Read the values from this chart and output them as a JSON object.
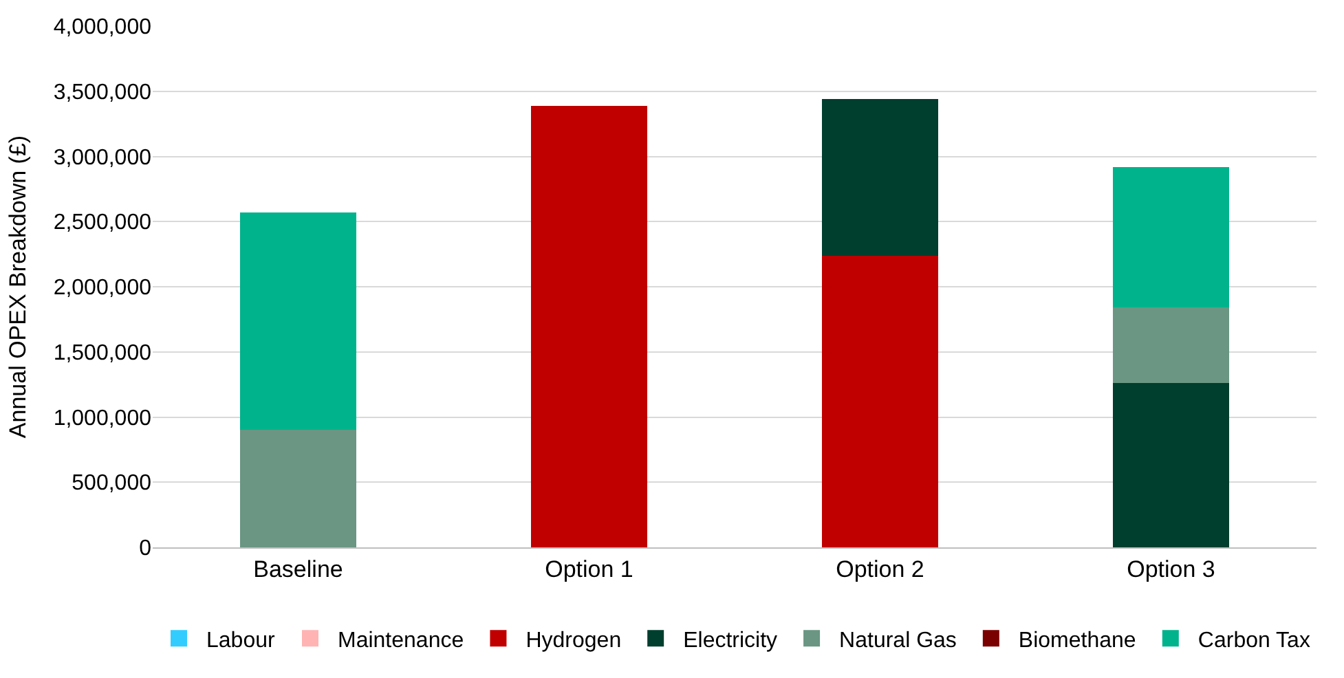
{
  "chart_data": {
    "type": "bar",
    "stacked": true,
    "ylabel": "Annual OPEX Breakdown (£)",
    "categories": [
      "Baseline",
      "Option 1",
      "Option 2",
      "Option 3"
    ],
    "series": [
      {
        "name": "Labour",
        "color": "#33ccff",
        "values": [
          0,
          0,
          0,
          0
        ]
      },
      {
        "name": "Maintenance",
        "color": "#ffb3b3",
        "values": [
          0,
          0,
          0,
          0
        ]
      },
      {
        "name": "Hydrogen",
        "color": "#c00000",
        "values": [
          0,
          3390000,
          2240000,
          0
        ]
      },
      {
        "name": "Electricity",
        "color": "#003e2e",
        "values": [
          0,
          0,
          1200000,
          1260000
        ]
      },
      {
        "name": "Natural Gas",
        "color": "#6a9683",
        "values": [
          900000,
          0,
          0,
          580000
        ]
      },
      {
        "name": "Biomethane",
        "color": "#7a0000",
        "values": [
          0,
          0,
          0,
          0
        ]
      },
      {
        "name": "Carbon Tax",
        "color": "#00b38c",
        "values": [
          1670000,
          0,
          0,
          1080000
        ]
      }
    ],
    "ylim": [
      0,
      4000000
    ],
    "yticks": [
      {
        "value": 0,
        "label": "0"
      },
      {
        "value": 500000,
        "label": "500,000"
      },
      {
        "value": 1000000,
        "label": "1,000,000"
      },
      {
        "value": 1500000,
        "label": "1,500,000"
      },
      {
        "value": 2000000,
        "label": "2,000,000"
      },
      {
        "value": 2500000,
        "label": "2,500,000"
      },
      {
        "value": 3000000,
        "label": "3,000,000"
      },
      {
        "value": 3500000,
        "label": "3,500,000"
      },
      {
        "value": 4000000,
        "label": "4,000,000"
      }
    ],
    "grid": "y",
    "legend": "bottom"
  }
}
